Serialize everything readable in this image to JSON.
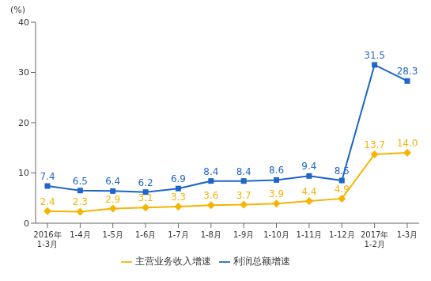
{
  "chart_data": {
    "type": "line",
    "y_label": "(%)",
    "categories": [
      "2016年\n1-3月",
      "1-4月",
      "1-5月",
      "1-6月",
      "1-7月",
      "1-8月",
      "1-9月",
      "1-10月",
      "1-11月",
      "1-12月",
      "2017年\n1-2月",
      "1-3月"
    ],
    "series": [
      {
        "name": "主营业务收入增速",
        "color": "#F5B400",
        "marker": "diamond",
        "values": [
          2.4,
          2.3,
          2.9,
          3.1,
          3.3,
          3.6,
          3.7,
          3.9,
          4.4,
          4.9,
          13.7,
          14.0
        ],
        "value_labels": [
          "2.4",
          "2.3",
          "2.9",
          "3.1",
          "3.3",
          "3.6",
          "3.7",
          "3.9",
          "4.4",
          "4.9",
          "13.7",
          "14.0"
        ]
      },
      {
        "name": "利润总额增速",
        "color": "#1F66C8",
        "marker": "square",
        "values": [
          7.4,
          6.5,
          6.4,
          6.2,
          6.9,
          8.4,
          8.4,
          8.6,
          9.4,
          8.5,
          31.5,
          28.3
        ]
      }
    ],
    "ylim": [
      0,
      40
    ],
    "yticks": [
      0,
      10,
      20,
      30,
      40
    ],
    "grid": false,
    "legend": "bottom",
    "data_labels": true
  }
}
